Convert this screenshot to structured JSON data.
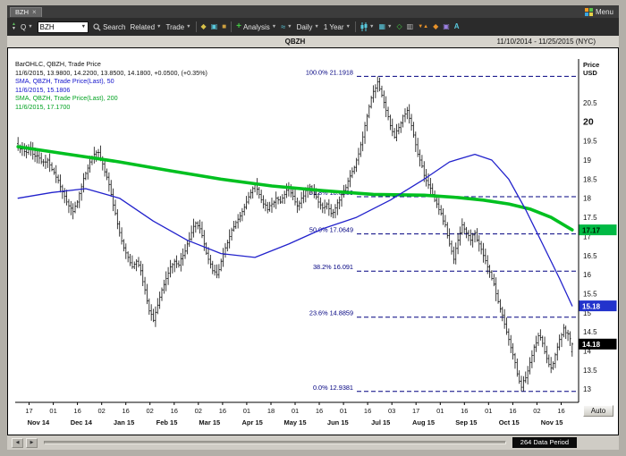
{
  "window": {
    "tab": "BZH",
    "menu_label": "Menu"
  },
  "toolbar": {
    "quote_label": "Q",
    "symbol_value": "BZH",
    "search_label": "Search",
    "related_label": "Related",
    "trade_label": "Trade",
    "analysis_label": "Analysis",
    "interval_label": "Daily",
    "range_label": "1 Year"
  },
  "header": {
    "instrument": "QBZH",
    "date_range": "11/10/2014 - 11/25/2015 (NYC)"
  },
  "legend": {
    "line1": "BarOHLC, QBZH, Trade Price",
    "line2": "11/6/2015, 13.9800, 14.2200, 13.8500, 14.1800, +0.0500, (+0.35%)",
    "line3": "SMA, QBZH, Trade Price(Last), 50",
    "line4": "11/6/2015, 15.1806",
    "line5": "SMA, QBZH, Trade Price(Last), 200",
    "line6": "11/6/2015, 17.1700"
  },
  "axis": {
    "title_line1": "Price",
    "title_line2": "USD",
    "price_ticks": [
      20.5,
      20,
      19.5,
      19,
      18.5,
      18,
      17.5,
      17,
      16.5,
      16,
      15.5,
      15,
      14.5,
      14,
      13.5,
      13
    ],
    "badges": [
      {
        "label": "17.17",
        "bg": "#00b944",
        "fg": "#001a00",
        "price": 17.17
      },
      {
        "label": "15.18",
        "bg": "#2233cc",
        "fg": "#ffffff",
        "price": 15.18
      },
      {
        "label": "14.18",
        "bg": "#000000",
        "fg": "#ffffff",
        "price": 14.18
      }
    ]
  },
  "footer": {
    "auto_label": "Auto",
    "data_period_label": "264 Data Period"
  },
  "chart_data": {
    "type": "ohlc",
    "title": "QBZH Trade Price, daily bars with 50/200-day SMA and Fibonacci retracement levels",
    "date_range": [
      "11/10/2014",
      "11/25/2015"
    ],
    "ylim": [
      12.7,
      21.6
    ],
    "period_high": 21.1918,
    "period_low": 12.9381,
    "last_bar": {
      "date": "11/6/2015",
      "open": 13.98,
      "high": 14.22,
      "low": 13.85,
      "close": 14.18,
      "change": "+0.0500",
      "change_pct": "+0.35%"
    },
    "sma50_last": 15.1806,
    "sma200_last": 17.17,
    "fib_levels": [
      {
        "pct": "100.0%",
        "value": "21.1918"
      },
      {
        "pct": "61.8%",
        "value": "18.0389"
      },
      {
        "pct": "50.0%",
        "value": "17.0649"
      },
      {
        "pct": "38.2%",
        "value": "16.091"
      },
      {
        "pct": "23.6%",
        "value": "14.8859"
      },
      {
        "pct": "0.0%",
        "value": "12.9381"
      }
    ],
    "closes": [
      19.35,
      19.3,
      19.2,
      19.28,
      19.1,
      19.05,
      18.95,
      19.0,
      18.75,
      18.55,
      18.3,
      18.05,
      17.8,
      17.65,
      17.9,
      18.3,
      18.65,
      18.95,
      19.15,
      19.2,
      18.9,
      18.55,
      18.1,
      17.6,
      17.1,
      16.7,
      16.45,
      16.2,
      16.35,
      16.1,
      15.6,
      15.05,
      14.8,
      15.2,
      15.6,
      15.9,
      16.2,
      16.35,
      16.25,
      16.5,
      16.8,
      17.1,
      17.35,
      17.2,
      16.8,
      16.4,
      16.1,
      16.0,
      16.35,
      16.7,
      17.0,
      17.25,
      17.45,
      17.65,
      17.9,
      18.15,
      18.35,
      18.1,
      17.85,
      17.7,
      17.85,
      18.0,
      17.9,
      18.1,
      18.25,
      18.05,
      17.8,
      18.0,
      18.2,
      18.3,
      18.1,
      17.9,
      17.75,
      17.85,
      17.6,
      17.75,
      17.95,
      18.2,
      18.45,
      18.7,
      19.0,
      19.4,
      19.9,
      20.4,
      20.8,
      21.05,
      20.7,
      20.3,
      19.9,
      19.6,
      19.85,
      20.15,
      20.3,
      19.9,
      19.4,
      19.0,
      18.6,
      18.35,
      18.1,
      17.85,
      17.6,
      17.3,
      16.8,
      16.4,
      16.9,
      17.3,
      17.1,
      16.9,
      17.1,
      16.8,
      16.5,
      16.2,
      15.9,
      15.5,
      15.1,
      14.7,
      14.3,
      13.9,
      13.4,
      13.05,
      13.3,
      13.7,
      14.1,
      14.4,
      14.2,
      13.8,
      13.55,
      13.9,
      14.3,
      14.6,
      14.45,
      14.18
    ],
    "sma50_keypoints": [
      [
        0,
        18.0
      ],
      [
        8,
        18.15
      ],
      [
        16,
        18.25
      ],
      [
        24,
        18.0
      ],
      [
        32,
        17.4
      ],
      [
        40,
        16.9
      ],
      [
        48,
        16.55
      ],
      [
        56,
        16.45
      ],
      [
        64,
        16.8
      ],
      [
        72,
        17.2
      ],
      [
        80,
        17.5
      ],
      [
        88,
        17.95
      ],
      [
        96,
        18.5
      ],
      [
        102,
        18.95
      ],
      [
        108,
        19.15
      ],
      [
        112,
        19.0
      ],
      [
        116,
        18.5
      ],
      [
        120,
        17.7
      ],
      [
        124,
        16.8
      ],
      [
        128,
        15.9
      ],
      [
        131,
        15.18
      ]
    ],
    "sma200_keypoints": [
      [
        0,
        19.35
      ],
      [
        12,
        19.15
      ],
      [
        24,
        18.95
      ],
      [
        36,
        18.72
      ],
      [
        48,
        18.5
      ],
      [
        60,
        18.32
      ],
      [
        72,
        18.2
      ],
      [
        84,
        18.1
      ],
      [
        96,
        18.08
      ],
      [
        104,
        18.02
      ],
      [
        110,
        17.95
      ],
      [
        116,
        17.85
      ],
      [
        121,
        17.72
      ],
      [
        126,
        17.5
      ],
      [
        131,
        17.17
      ]
    ],
    "day_ticks": [
      "17",
      "01",
      "16",
      "02",
      "16",
      "02",
      "16",
      "02",
      "16",
      "01",
      "18",
      "01",
      "16",
      "01",
      "16",
      "03",
      "17",
      "01",
      "16",
      "01",
      "16",
      "02",
      "16"
    ],
    "month_labels": [
      "Nov 14",
      "Dec 14",
      "Jan 15",
      "Feb 15",
      "Mar 15",
      "Apr 15",
      "May 15",
      "Jun 15",
      "Jul 15",
      "Aug 15",
      "Sep 15",
      "Oct 15",
      "Nov 15"
    ],
    "colors": {
      "bars": "#101010",
      "sma50": "#2222cc",
      "sma200": "#00c020",
      "fib": "#000080"
    }
  }
}
